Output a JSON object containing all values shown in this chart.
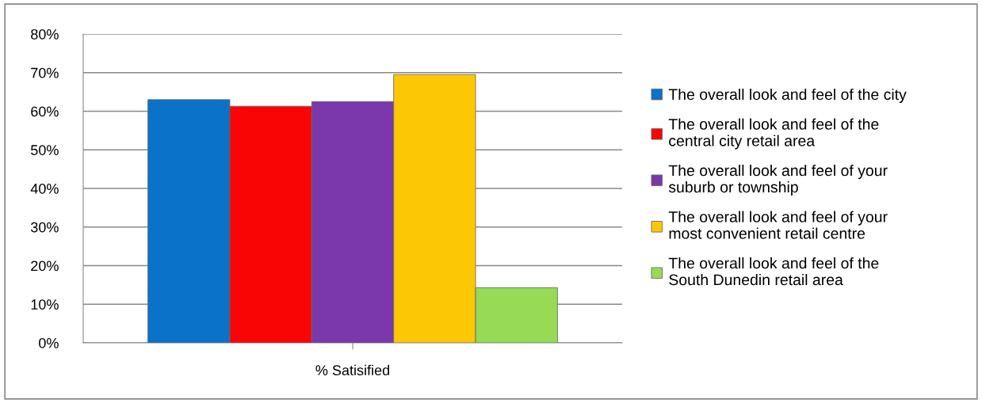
{
  "chart_data": {
    "type": "bar",
    "categories": [
      "% Satisified"
    ],
    "series": [
      {
        "name": "The overall look and feel of the city",
        "color": "#0a72c8",
        "values": [
          63
        ]
      },
      {
        "name": "The overall look and feel of the\ncentral city retail area",
        "color": "#fa0505",
        "values": [
          61.3
        ]
      },
      {
        "name": "The overall look and feel of your\nsuburb or township",
        "color": "#7a38ac",
        "values": [
          62.5
        ]
      },
      {
        "name": "The overall look and feel of your\nmost convenient retail centre",
        "color": "#fcc805",
        "values": [
          69.5
        ]
      },
      {
        "name": "The overall look and feel of the\nSouth Dunedin retail area",
        "color": "#96da55",
        "values": [
          14.3
        ]
      }
    ],
    "ylim": [
      0,
      80
    ],
    "yticks": [
      {
        "value": 0,
        "label": "0%"
      },
      {
        "value": 10,
        "label": "10%"
      },
      {
        "value": 20,
        "label": "20%"
      },
      {
        "value": 30,
        "label": "30%"
      },
      {
        "value": 40,
        "label": "40%"
      },
      {
        "value": 50,
        "label": "50%"
      },
      {
        "value": 60,
        "label": "60%"
      },
      {
        "value": 70,
        "label": "70%"
      },
      {
        "value": 80,
        "label": "80%"
      }
    ],
    "grid": "y",
    "legend": "right"
  }
}
